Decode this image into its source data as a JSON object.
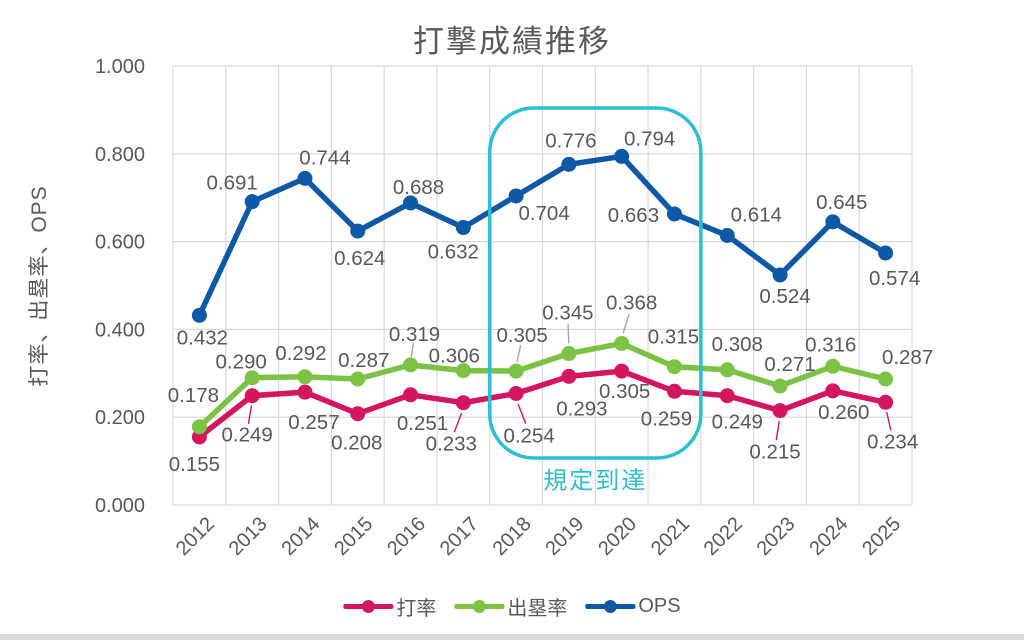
{
  "title": "打撃成績推移",
  "chart_data": {
    "type": "line",
    "title": "打撃成績推移",
    "xlabel": "",
    "ylabel": "打率、出塁率、OPS",
    "ylim": [
      0,
      1
    ],
    "ytick_labels": [
      "1.000",
      "0.800",
      "0.600",
      "0.400",
      "0.200",
      "0.000"
    ],
    "grid": true,
    "legend_position": "bottom",
    "data_label_format": "0.000",
    "categories": [
      "2012",
      "2013",
      "2014",
      "2015",
      "2016",
      "2017",
      "2018",
      "2019",
      "2020",
      "2021",
      "2022",
      "2023",
      "2024",
      "2025"
    ],
    "series": [
      {
        "name": "打率",
        "color": "#d41560",
        "values": [
          0.155,
          0.249,
          0.257,
          0.208,
          0.251,
          0.233,
          0.254,
          0.293,
          0.305,
          0.259,
          0.249,
          0.215,
          0.26,
          0.234
        ]
      },
      {
        "name": "出塁率",
        "color": "#7cc243",
        "values": [
          0.178,
          0.29,
          0.292,
          0.287,
          0.319,
          0.306,
          0.305,
          0.345,
          0.368,
          0.315,
          0.308,
          0.271,
          0.316,
          0.287
        ]
      },
      {
        "name": "OPS",
        "color": "#0e58a8",
        "values": [
          0.432,
          0.691,
          0.744,
          0.624,
          0.688,
          0.632,
          0.704,
          0.776,
          0.794,
          0.663,
          0.614,
          0.524,
          0.645,
          0.574
        ]
      }
    ],
    "annotation": {
      "text": "規定到達",
      "color": "#2bbfd6",
      "covers_categories": [
        "2018",
        "2021"
      ]
    }
  },
  "colors": {
    "text": "#595959",
    "gridline": "#d9d9d9",
    "leader": "#a6a6a6",
    "highlight_box": "#2bbfd6",
    "background": "#ffffff"
  }
}
